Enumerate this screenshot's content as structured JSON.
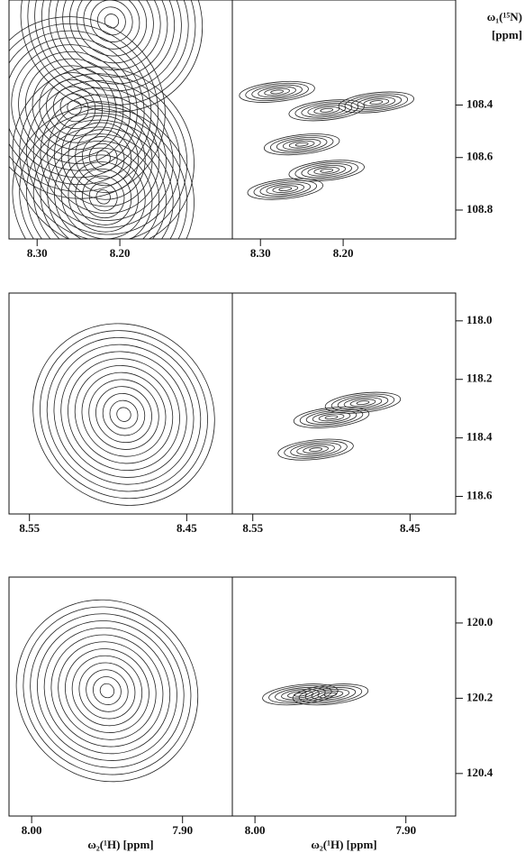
{
  "chart_data": [
    {
      "type": "contour",
      "y_label": [
        "ω₁(¹⁵N)",
        "[ppm]"
      ],
      "xlim": [
        8.334,
        8.064
      ],
      "ylim": [
        108.0,
        108.91
      ],
      "xticks": [
        {
          "value": 8.3,
          "label": "8.30"
        },
        {
          "value": 8.2,
          "label": "8.20"
        }
      ],
      "yticks": [
        108.4,
        108.6,
        108.8
      ],
      "panels": [
        {
          "x": [
            8.255,
            8.22,
            8.22,
            8.21
          ],
          "y": [
            108.41,
            108.6,
            108.75,
            108.08
          ]
        },
        {
          "x": [
            8.28,
            8.22,
            8.16,
            8.25,
            8.22,
            8.27
          ],
          "y": [
            108.35,
            108.42,
            108.39,
            108.55,
            108.65,
            108.72
          ]
        }
      ]
    },
    {
      "type": "contour",
      "xlim": [
        8.563,
        8.421
      ],
      "ylim": [
        117.905,
        118.66
      ],
      "xticks": [
        {
          "value": 8.55,
          "label": "8.55"
        },
        {
          "value": 8.45,
          "label": "8.45"
        }
      ],
      "yticks": [
        {
          "value": 118.0,
          "label": "118.0"
        },
        118.2,
        118.4,
        118.6
      ],
      "panels": [
        {
          "x": [
            8.49
          ],
          "y": [
            118.32
          ]
        },
        {
          "x": [
            8.48,
            8.5,
            8.51
          ],
          "y": [
            118.28,
            118.33,
            118.44
          ]
        }
      ]
    },
    {
      "type": "contour",
      "x_label": "ω₂(¹H) [ppm]",
      "xlim": [
        8.015,
        7.867
      ],
      "ylim": [
        119.878,
        120.513
      ],
      "xticks": [
        {
          "value": 8.0,
          "label": "8.00"
        },
        {
          "value": 7.9,
          "label": "7.90"
        }
      ],
      "yticks": [
        {
          "value": 120.0,
          "label": "120.0"
        },
        120.2,
        120.4
      ],
      "panels": [
        {
          "x": [
            7.95
          ],
          "y": [
            120.18
          ]
        },
        {
          "x": [
            7.95,
            7.97
          ],
          "y": [
            120.19,
            120.19
          ]
        }
      ]
    }
  ]
}
